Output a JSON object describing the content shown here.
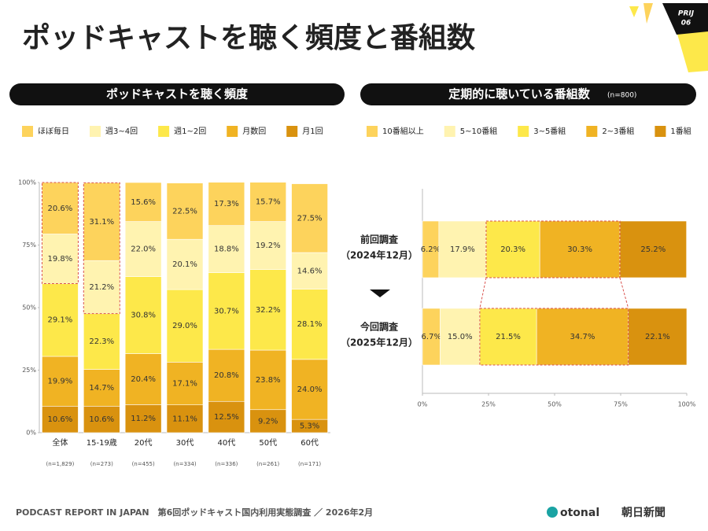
{
  "title": "ポッドキャストを聴く頻度と番組数",
  "page_badge": {
    "label": "PRIJ",
    "number": "06"
  },
  "footer": "PODCAST REPORT IN JAPAN　第6回ポッドキャスト国内利用実態調査 ／ 2026年2月",
  "logos": [
    "otonal",
    "朝日新聞"
  ],
  "chart_data": [
    {
      "type": "stacked_bar",
      "title": "ポッドキャストを聴く頻度",
      "categories": [
        "全体",
        "15-19歳",
        "20代",
        "30代",
        "40代",
        "50代",
        "60代"
      ],
      "n_labels": [
        "(n=1,829)",
        "(n=273)",
        "(n=455)",
        "(n=334)",
        "(n=336)",
        "(n=261)",
        "(n=171)"
      ],
      "series": [
        {
          "name": "ほぼ毎日",
          "color": "#fdd35c",
          "values": [
            20.6,
            31.1,
            15.6,
            22.5,
            17.3,
            15.7,
            27.5
          ],
          "value_labels": [
            "20.6%",
            "31.1%",
            "15.6%",
            "22.5%",
            "17.3%",
            "15.7%",
            "27.5%"
          ]
        },
        {
          "name": "週3~4回",
          "color": "#fff3b0",
          "values": [
            19.8,
            21.2,
            22.0,
            20.1,
            18.8,
            19.2,
            14.6
          ],
          "value_labels": [
            "19.8%",
            "21.2%",
            "22.0%",
            "20.1%",
            "18.8%",
            "19.2%",
            "14.6%"
          ]
        },
        {
          "name": "週1~2回",
          "color": "#fde84a",
          "values": [
            29.1,
            22.3,
            30.8,
            29.0,
            30.7,
            32.2,
            28.1
          ],
          "value_labels": [
            "29.1%",
            "22.3%",
            "30.8%",
            "29.0%",
            "30.7%",
            "32.2%",
            "28.1%"
          ]
        },
        {
          "name": "月数回",
          "color": "#f0b323",
          "values": [
            19.9,
            14.7,
            20.4,
            17.1,
            20.8,
            23.8,
            24.0
          ],
          "value_labels": [
            "19.9%",
            "14.7%",
            "20.4%",
            "17.1%",
            "20.8%",
            "23.8%",
            "24.0%"
          ]
        },
        {
          "name": "月1回",
          "color": "#d9920f",
          "values": [
            10.6,
            10.6,
            11.2,
            11.1,
            12.5,
            9.2,
            5.3
          ],
          "value_labels": [
            "10.6%",
            "10.6%",
            "11.2%",
            "11.1%",
            "12.5%",
            "9.2%",
            "5.3%"
          ]
        }
      ],
      "ylim": [
        0,
        100
      ],
      "yticks": [
        {
          "value": 0,
          "label": "0%"
        },
        {
          "value": 25,
          "label": "25%"
        },
        {
          "value": 50,
          "label": "50%"
        },
        {
          "value": 75,
          "label": "75%"
        },
        {
          "value": 100,
          "label": "100%"
        }
      ]
    },
    {
      "type": "stacked_barh",
      "title": "定期的に聴いている番組数",
      "subtitle": "(n=800)",
      "categories": [
        "前回調査",
        "今回調査"
      ],
      "category_dates": [
        "（2024年12月）",
        "（2025年12月）"
      ],
      "series": [
        {
          "name": "10番組以上",
          "color": "#fdd35c",
          "values": [
            6.2,
            6.7
          ],
          "value_labels": [
            "6.2%",
            "6.7%"
          ]
        },
        {
          "name": "5~10番組",
          "color": "#fff3b0",
          "values": [
            17.9,
            15.0
          ],
          "value_labels": [
            "17.9%",
            "15.0%"
          ]
        },
        {
          "name": "3~5番組",
          "color": "#fde84a",
          "values": [
            20.3,
            21.5
          ],
          "value_labels": [
            "20.3%",
            "21.5%"
          ]
        },
        {
          "name": "2~3番組",
          "color": "#f0b323",
          "values": [
            30.3,
            34.7
          ],
          "value_labels": [
            "30.3%",
            "34.7%"
          ]
        },
        {
          "name": "1番組",
          "color": "#d9920f",
          "values": [
            25.2,
            22.1
          ],
          "value_labels": [
            "25.2%",
            "22.1%"
          ]
        }
      ],
      "xlim": [
        0,
        100
      ],
      "xticks": [
        {
          "value": 0,
          "label": "0%"
        },
        {
          "value": 25,
          "label": "25%"
        },
        {
          "value": 50,
          "label": "50%"
        },
        {
          "value": 75,
          "label": "75%"
        },
        {
          "value": 100,
          "label": "100%"
        }
      ]
    }
  ]
}
